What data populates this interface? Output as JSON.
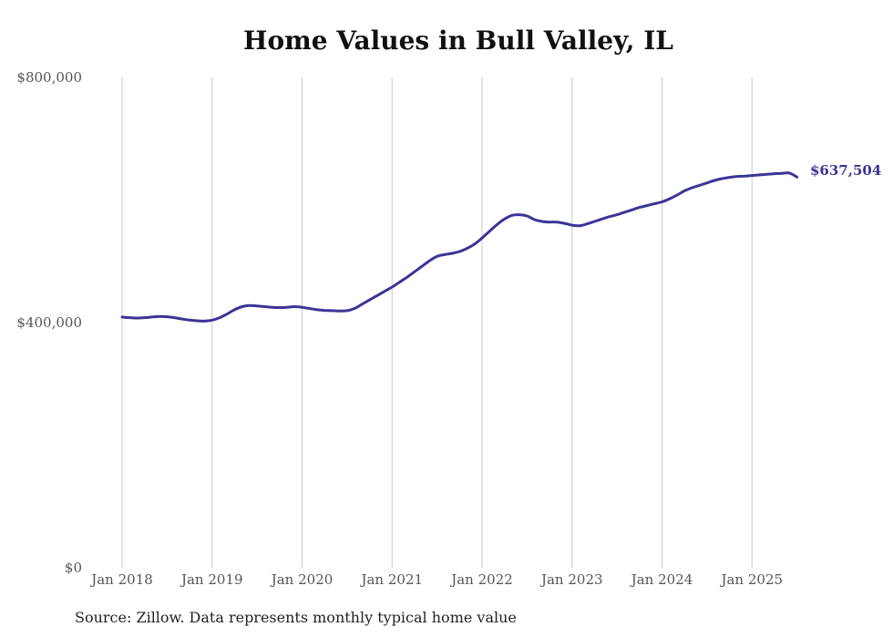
{
  "chart_data": {
    "type": "line",
    "title": "Home Values in Bull Valley, IL",
    "xlabel": "",
    "ylabel": "",
    "x_tick_labels": [
      "Jan 2018",
      "Jan 2019",
      "Jan 2020",
      "Jan 2021",
      "Jan 2022",
      "Jan 2023",
      "Jan 2024",
      "Jan 2025"
    ],
    "y_tick_labels": [
      "$0",
      "$400,000",
      "$800,000"
    ],
    "ylim": [
      0,
      800000
    ],
    "xlim": [
      "2018-01",
      "2025-07"
    ],
    "grid": "vertical",
    "line_color": "#3b3596",
    "end_label": "$637,504",
    "series": [
      {
        "x": [
          "2018-01",
          "2018-02",
          "2018-03",
          "2018-04",
          "2018-05",
          "2018-06",
          "2018-07",
          "2018-08",
          "2018-09",
          "2018-10",
          "2018-11",
          "2018-12",
          "2019-01",
          "2019-02",
          "2019-03",
          "2019-04",
          "2019-05",
          "2019-06",
          "2019-07",
          "2019-08",
          "2019-09",
          "2019-10",
          "2019-11",
          "2019-12",
          "2020-01",
          "2020-02",
          "2020-03",
          "2020-04",
          "2020-05",
          "2020-06",
          "2020-07",
          "2020-08",
          "2020-09",
          "2020-10",
          "2020-11",
          "2020-12",
          "2021-01",
          "2021-02",
          "2021-03",
          "2021-04",
          "2021-05",
          "2021-06",
          "2021-07",
          "2021-08",
          "2021-09",
          "2021-10",
          "2021-11",
          "2021-12",
          "2022-01",
          "2022-02",
          "2022-03",
          "2022-04",
          "2022-05",
          "2022-06",
          "2022-07",
          "2022-08",
          "2022-09",
          "2022-10",
          "2022-11",
          "2022-12",
          "2023-01",
          "2023-02",
          "2023-03",
          "2023-04",
          "2023-05",
          "2023-06",
          "2023-07",
          "2023-08",
          "2023-09",
          "2023-10",
          "2023-11",
          "2023-12",
          "2024-01",
          "2024-02",
          "2024-03",
          "2024-04",
          "2024-05",
          "2024-06",
          "2024-07",
          "2024-08",
          "2024-09",
          "2024-10",
          "2024-11",
          "2024-12",
          "2025-01",
          "2025-02",
          "2025-03",
          "2025-04",
          "2025-05",
          "2025-06",
          "2025-07"
        ],
        "values": [
          409000,
          408000,
          407500,
          408000,
          409000,
          410000,
          409500,
          408000,
          406000,
          404000,
          403000,
          402500,
          404000,
          408000,
          414000,
          421000,
          426000,
          428000,
          427000,
          426000,
          425000,
          424500,
          425000,
          426000,
          425000,
          423000,
          421000,
          420000,
          419500,
          419000,
          419500,
          423000,
          430000,
          437000,
          444000,
          451000,
          458000,
          466000,
          474000,
          483000,
          492000,
          501000,
          508000,
          511000,
          513000,
          516000,
          521000,
          528000,
          538000,
          549000,
          560000,
          569000,
          575000,
          576000,
          574000,
          568000,
          565000,
          564000,
          564000,
          562000,
          559000,
          558000,
          561000,
          565000,
          569000,
          573000,
          576000,
          580000,
          584000,
          588000,
          591000,
          594000,
          597000,
          602000,
          608000,
          615000,
          620000,
          624000,
          628000,
          632000,
          635000,
          637000,
          638500,
          639000,
          640000,
          641000,
          642000,
          643000,
          643500,
          644000,
          637504
        ]
      }
    ]
  },
  "source_note": "Source: Zillow. Data represents monthly typical home value"
}
